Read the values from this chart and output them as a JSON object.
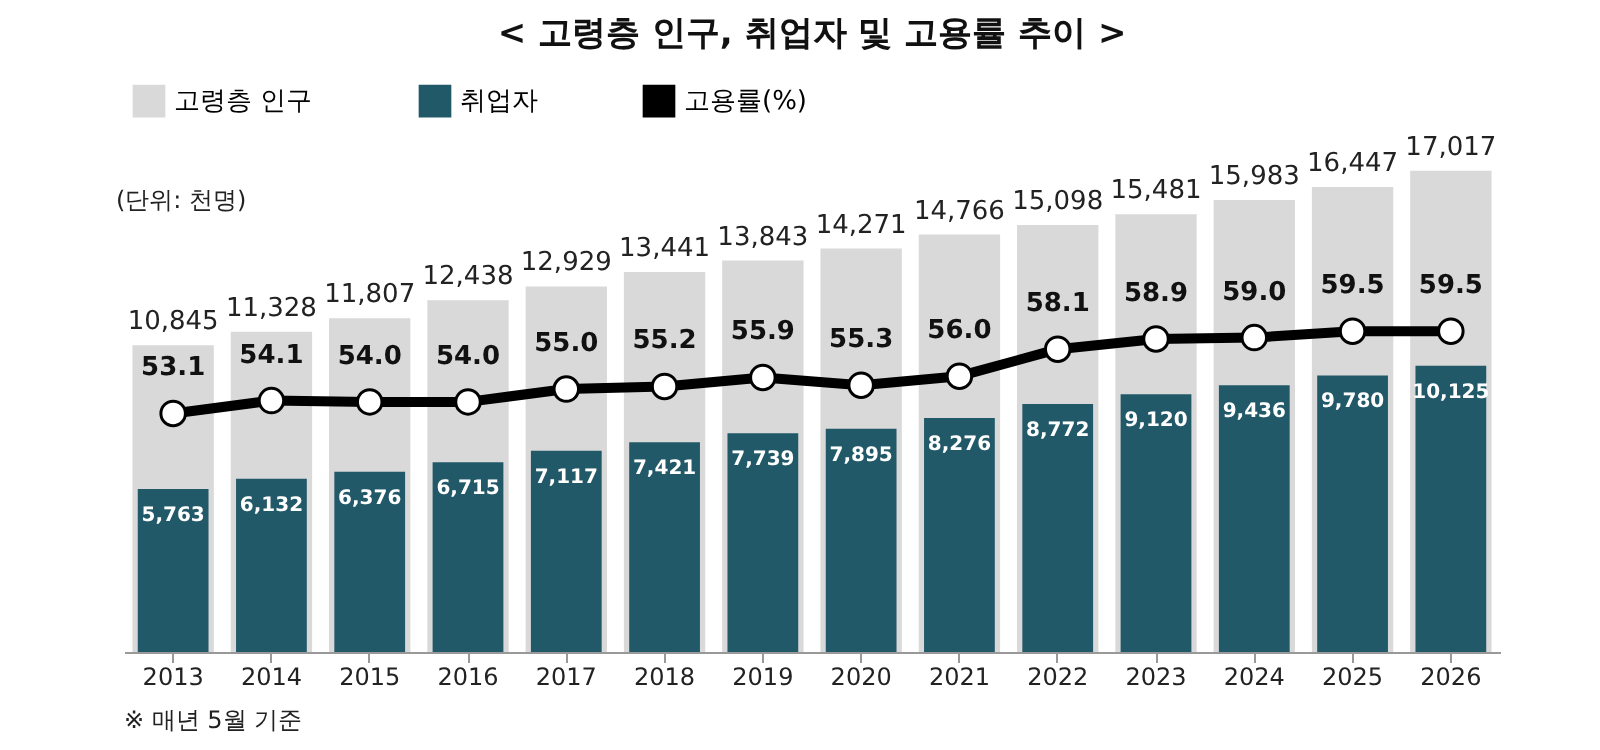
{
  "chart_data": {
    "type": "bar",
    "title": "< 고령층 인구, 취업자 및 고용률 추이 >",
    "categories": [
      "2013",
      "2014",
      "2015",
      "2016",
      "2017",
      "2018",
      "2019",
      "2020",
      "2021",
      "2022",
      "2023",
      "2024",
      "2025",
      "2026"
    ],
    "series": [
      {
        "name": "고령층 인구",
        "color": "#d9d9d9",
        "values": [
          10845,
          11328,
          11807,
          12438,
          12929,
          13441,
          13843,
          14271,
          14766,
          15098,
          15481,
          15983,
          16447,
          17017
        ],
        "value_labels": [
          "10,845",
          "11,328",
          "11,807",
          "12,438",
          "12,929",
          "13,441",
          "13,843",
          "14,271",
          "14,766",
          "15,098",
          "15,481",
          "15,983",
          "16,447",
          "17,017"
        ]
      },
      {
        "name": "취업자",
        "color": "#215968",
        "values": [
          5763,
          6132,
          6376,
          6715,
          7117,
          7421,
          7739,
          7895,
          8276,
          8772,
          9120,
          9436,
          9780,
          10125
        ],
        "value_labels": [
          "5,763",
          "6,132",
          "6,376",
          "6,715",
          "7,117",
          "7,421",
          "7,739",
          "7,895",
          "8,276",
          "8,772",
          "9,120",
          "9,436",
          "9,780",
          "10,125"
        ]
      },
      {
        "name": "고용률(%)",
        "type": "line",
        "axis": "y2",
        "color": "#000000",
        "values": [
          53.1,
          54.1,
          54.0,
          54.0,
          55.0,
          55.2,
          55.9,
          55.3,
          56.0,
          58.1,
          58.9,
          59.0,
          59.5,
          59.5
        ],
        "value_labels": [
          "53.1",
          "54.1",
          "54.0",
          "54.0",
          "55.0",
          "55.2",
          "55.9",
          "55.3",
          "56.0",
          "58.1",
          "58.9",
          "59.0",
          "59.5",
          "59.5"
        ]
      }
    ],
    "tick_labels": "x",
    "legend": "top",
    "marker": "circle",
    "line_style": "solid",
    "annotations": [
      "(단위: 천명)",
      "※  매년 5월 기준"
    ]
  }
}
